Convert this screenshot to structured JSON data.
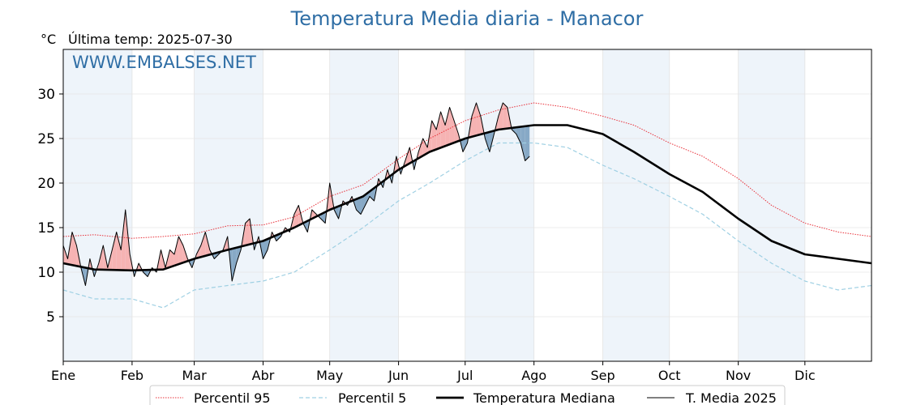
{
  "chart_data": {
    "type": "line",
    "title": "Temperatura Media diaria - Manacor",
    "ylabel": "°C",
    "subtitle": "Última temp: 2025-07-30",
    "watermark": "WWW.EMBALSES.NET",
    "x_unit": "day of year",
    "xlim": [
      1,
      365
    ],
    "ylim": [
      0,
      35
    ],
    "yticks": [
      5,
      10,
      15,
      20,
      25,
      30
    ],
    "months": [
      {
        "label": "Ene",
        "start_day": 1
      },
      {
        "label": "Feb",
        "start_day": 32
      },
      {
        "label": "Mar",
        "start_day": 60
      },
      {
        "label": "Abr",
        "start_day": 91
      },
      {
        "label": "May",
        "start_day": 121
      },
      {
        "label": "Jun",
        "start_day": 152
      },
      {
        "label": "Jul",
        "start_day": 182
      },
      {
        "label": "Ago",
        "start_day": 213
      },
      {
        "label": "Sep",
        "start_day": 244
      },
      {
        "label": "Oct",
        "start_day": 274
      },
      {
        "label": "Nov",
        "start_day": 305
      },
      {
        "label": "Dic",
        "start_day": 335
      }
    ],
    "grid": true,
    "legend_position": "bottom-center",
    "series": [
      {
        "name": "Percentil 95",
        "style": "dotted",
        "color": "#e8313a",
        "days": [
          1,
          15,
          32,
          46,
          60,
          75,
          91,
          105,
          121,
          136,
          152,
          166,
          182,
          197,
          213,
          228,
          244,
          258,
          274,
          289,
          305,
          320,
          335,
          350,
          365
        ],
        "values": [
          14.0,
          14.2,
          13.8,
          14.0,
          14.3,
          15.2,
          15.3,
          16.2,
          18.5,
          19.8,
          22.7,
          25.0,
          27.0,
          28.2,
          29.0,
          28.5,
          27.5,
          26.5,
          24.5,
          23.0,
          20.5,
          17.5,
          15.5,
          14.5,
          14.0
        ]
      },
      {
        "name": "Percentil 5",
        "style": "dashed",
        "color": "#9fd0e3",
        "days": [
          1,
          15,
          32,
          46,
          60,
          75,
          91,
          105,
          121,
          136,
          152,
          166,
          182,
          197,
          213,
          228,
          244,
          258,
          274,
          289,
          305,
          320,
          335,
          350,
          365
        ],
        "values": [
          8.0,
          7.0,
          7.0,
          6.0,
          8.0,
          8.5,
          9.0,
          10.0,
          12.5,
          15.0,
          18.0,
          20.0,
          22.5,
          24.5,
          24.5,
          24.0,
          22.0,
          20.5,
          18.5,
          16.5,
          13.5,
          11.0,
          9.0,
          8.0,
          8.5
        ]
      },
      {
        "name": "Temperatura Mediana",
        "style": "solid-thick",
        "color": "#000000",
        "days": [
          1,
          15,
          32,
          46,
          60,
          75,
          91,
          105,
          121,
          136,
          152,
          166,
          182,
          197,
          213,
          228,
          244,
          258,
          274,
          289,
          305,
          320,
          335,
          350,
          365
        ],
        "values": [
          11.0,
          10.3,
          10.2,
          10.3,
          11.5,
          12.5,
          13.5,
          15.0,
          17.0,
          18.5,
          21.5,
          23.5,
          25.0,
          26.0,
          26.5,
          26.5,
          25.5,
          23.5,
          21.0,
          19.0,
          16.0,
          13.5,
          12.0,
          11.5,
          11.0
        ]
      },
      {
        "name": "T. Media 2025",
        "style": "solid-thin",
        "color": "#000000",
        "days": [
          1,
          3,
          5,
          7,
          9,
          11,
          13,
          15,
          17,
          19,
          21,
          23,
          25,
          27,
          29,
          31,
          33,
          35,
          37,
          39,
          41,
          43,
          45,
          47,
          49,
          51,
          53,
          55,
          57,
          59,
          61,
          63,
          65,
          67,
          69,
          71,
          73,
          75,
          77,
          79,
          81,
          83,
          85,
          87,
          89,
          91,
          93,
          95,
          97,
          99,
          101,
          103,
          105,
          107,
          109,
          111,
          113,
          115,
          117,
          119,
          121,
          123,
          125,
          127,
          129,
          131,
          133,
          135,
          137,
          139,
          141,
          143,
          145,
          147,
          149,
          151,
          153,
          155,
          157,
          159,
          161,
          163,
          165,
          167,
          169,
          171,
          173,
          175,
          177,
          179,
          181,
          183,
          185,
          187,
          189,
          191,
          193,
          195,
          197,
          199,
          201,
          203,
          205,
          207,
          209,
          211
        ],
        "values": [
          13.0,
          11.5,
          14.5,
          13.0,
          10.5,
          8.5,
          11.5,
          9.5,
          11.0,
          13.0,
          10.5,
          12.5,
          14.5,
          12.5,
          17.0,
          12.0,
          9.5,
          11.0,
          10.0,
          9.5,
          10.5,
          10.0,
          12.5,
          10.5,
          12.5,
          12.0,
          14.0,
          13.0,
          11.5,
          10.5,
          12.0,
          13.0,
          14.5,
          12.5,
          11.5,
          12.0,
          12.5,
          14.0,
          9.0,
          11.0,
          12.5,
          15.5,
          16.0,
          12.5,
          14.0,
          11.5,
          12.5,
          14.5,
          13.5,
          14.0,
          15.0,
          14.5,
          16.5,
          17.5,
          15.5,
          14.5,
          17.0,
          16.5,
          16.0,
          15.5,
          20.0,
          17.0,
          16.0,
          18.0,
          17.5,
          18.5,
          17.0,
          16.5,
          17.5,
          18.5,
          18.0,
          20.5,
          19.5,
          21.5,
          20.0,
          23.0,
          21.0,
          22.5,
          24.0,
          21.5,
          23.5,
          25.0,
          24.0,
          27.0,
          26.0,
          28.0,
          26.5,
          28.5,
          27.0,
          25.5,
          23.5,
          24.5,
          27.5,
          29.0,
          27.5,
          25.0,
          23.5,
          25.5,
          27.5,
          29.0,
          28.5,
          26.0,
          25.5,
          24.5,
          22.5,
          23.0
        ]
      }
    ],
    "fills": [
      {
        "between": [
          "T. Media 2025",
          "Temperatura Mediana"
        ],
        "where": "above",
        "color": "#f6b3b3"
      },
      {
        "between": [
          "T. Media 2025",
          "Temperatura Mediana"
        ],
        "where": "below",
        "color": "#87a9c6"
      }
    ]
  },
  "legend": {
    "items": [
      {
        "label": "Percentil 95",
        "key": "p95"
      },
      {
        "label": "Percentil 5",
        "key": "p5"
      },
      {
        "label": "Temperatura Mediana",
        "key": "median"
      },
      {
        "label": "T. Media 2025",
        "key": "t2025"
      }
    ]
  },
  "colors": {
    "title": "#2f6ea5",
    "watermark": "#2f6ea5",
    "month_band": "#eef4fa",
    "p95": "#e8313a",
    "p5": "#9fd0e3",
    "fill_above": "#f6b3b3",
    "fill_below": "#87a9c6"
  }
}
